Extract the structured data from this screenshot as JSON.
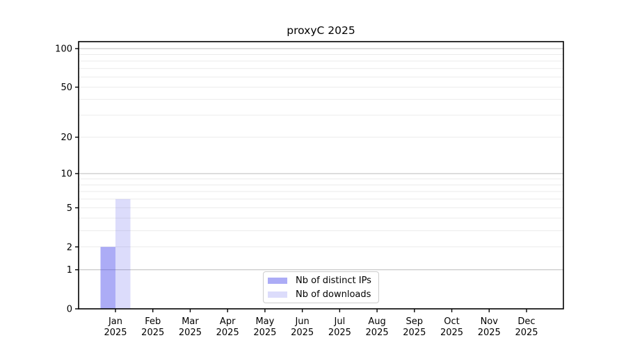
{
  "chart_data": {
    "type": "bar",
    "title": "proxyC 2025",
    "x_tick_labels": [
      [
        "Jan",
        "2025"
      ],
      [
        "Feb",
        "2025"
      ],
      [
        "Mar",
        "2025"
      ],
      [
        "Apr",
        "2025"
      ],
      [
        "May",
        "2025"
      ],
      [
        "Jun",
        "2025"
      ],
      [
        "Jul",
        "2025"
      ],
      [
        "Aug",
        "2025"
      ],
      [
        "Sep",
        "2025"
      ],
      [
        "Oct",
        "2025"
      ],
      [
        "Nov",
        "2025"
      ],
      [
        "Dec",
        "2025"
      ]
    ],
    "series": [
      {
        "name": "Nb of distinct IPs",
        "color": "rgba(70,70,235,0.45)",
        "values": [
          2,
          0,
          0,
          0,
          0,
          0,
          0,
          0,
          0,
          0,
          0,
          0
        ]
      },
      {
        "name": "Nb of downloads",
        "color": "rgba(70,70,235,0.19)",
        "values": [
          6,
          0,
          0,
          0,
          0,
          0,
          0,
          0,
          0,
          0,
          0,
          0
        ]
      }
    ],
    "yscale": "log1p",
    "ylim": [
      0,
      113.3
    ],
    "y_tick_values": [
      0,
      1,
      2,
      5,
      10,
      20,
      50,
      100
    ],
    "y_tick_labels": [
      "0",
      "1",
      "2",
      "5",
      "10",
      "20",
      "50",
      "100"
    ],
    "y_major_gridlines": [
      1,
      10,
      100
    ],
    "y_minor_gridlines": [
      2,
      3,
      4,
      5,
      6,
      7,
      8,
      9,
      20,
      30,
      40,
      50,
      60,
      70,
      80,
      90
    ],
    "grid": true,
    "legend_position": "lower center"
  },
  "colors": {
    "background": "#ffffff",
    "axis": "#000000",
    "tick_label": "#000000",
    "major_grid": "#c3c3c3",
    "minor_grid": "#ebebeb",
    "legend_border": "#cccccc",
    "legend_background": "#ffffff"
  }
}
